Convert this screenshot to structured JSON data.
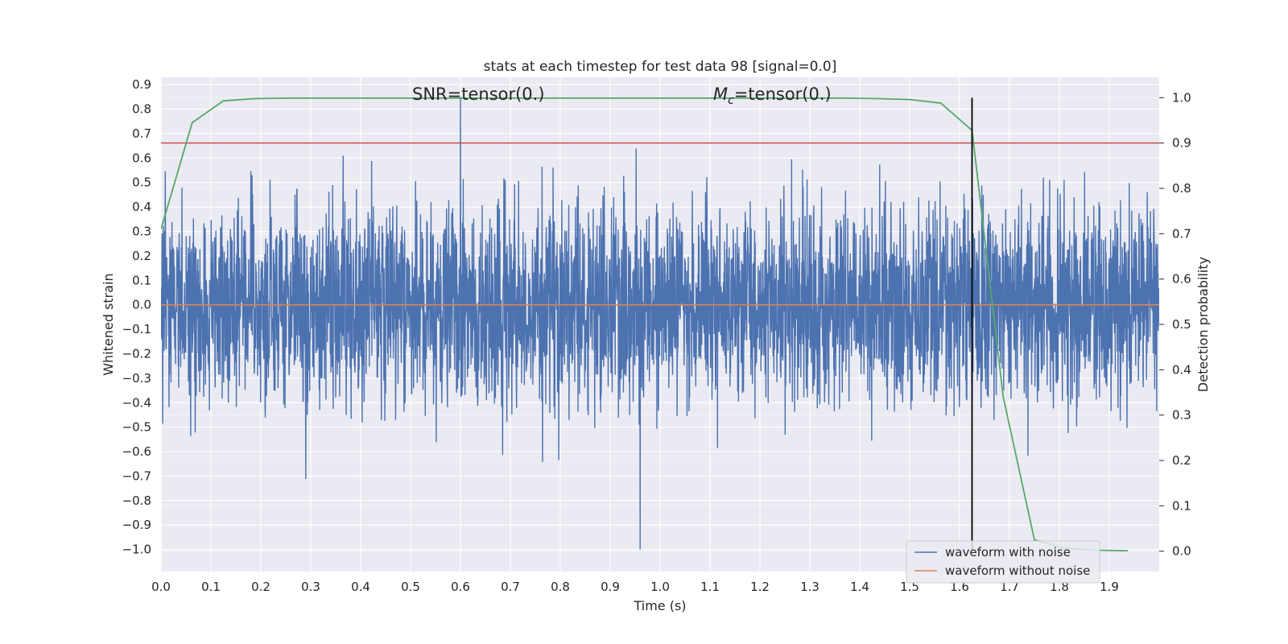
{
  "chart_data": {
    "type": "line",
    "title": "stats at each timestep for test data 98 [signal=0.0]",
    "xlabel": "Time (s)",
    "ylabel": "Whitened strain",
    "ylabel_right": "Detection probability",
    "xlim": [
      0.0,
      2.0
    ],
    "ylim": [
      -1.09,
      0.93
    ],
    "ylim_right": [
      -0.045,
      1.045
    ],
    "x_ticks": [
      "0.0",
      "0.1",
      "0.2",
      "0.3",
      "0.4",
      "0.5",
      "0.6",
      "0.7",
      "0.8",
      "0.9",
      "1.0",
      "1.1",
      "1.2",
      "1.3",
      "1.4",
      "1.5",
      "1.6",
      "1.7",
      "1.8",
      "1.9"
    ],
    "y_ticks": [
      "0.9",
      "0.8",
      "0.7",
      "0.6",
      "0.5",
      "0.4",
      "0.3",
      "0.2",
      "0.1",
      "0.0",
      "−0.1",
      "−0.2",
      "−0.3",
      "−0.4",
      "−0.5",
      "−0.6",
      "−0.7",
      "−0.8",
      "−0.9",
      "−1.0"
    ],
    "y_ticks_right": [
      "0.0",
      "0.1",
      "0.2",
      "0.3",
      "0.4",
      "0.5",
      "0.6",
      "0.7",
      "0.8",
      "0.9",
      "1.0"
    ],
    "grid": true,
    "legend_position": "lower-right",
    "annotations": {
      "snr": "SNR=tensor(0.)",
      "mc_symbol": "M",
      "mc_sub": "c",
      "mc_rest": "=tensor(0.)"
    },
    "threshold_right": 0.9,
    "detection_time": 1.625,
    "noise": {
      "n": 4000,
      "seed": 98,
      "sigma": 0.2,
      "max": 0.85,
      "min": -1.0,
      "peak_x": 0.6,
      "trough_x": 0.96
    },
    "series": [
      {
        "name": "waveform with noise",
        "color": "#4c72b0",
        "axis": "left"
      },
      {
        "name": "waveform without noise",
        "color": "#dd8452",
        "axis": "left",
        "x": [
          0.0,
          2.0
        ],
        "values": [
          0.0,
          0.0
        ]
      },
      {
        "color": "#55a868",
        "axis": "right",
        "x": [
          0.0,
          0.0625,
          0.125,
          0.1875,
          0.25,
          0.3125,
          0.375,
          0.4375,
          0.5,
          0.5625,
          0.625,
          0.6875,
          0.75,
          0.8125,
          0.875,
          0.9375,
          1.0,
          1.0625,
          1.125,
          1.1875,
          1.25,
          1.3125,
          1.375,
          1.4375,
          1.5,
          1.5625,
          1.625,
          1.6875,
          1.75,
          1.8125,
          1.875,
          1.9375
        ],
        "values": [
          0.71,
          0.945,
          0.993,
          0.998,
          0.999,
          0.999,
          0.999,
          0.999,
          0.999,
          0.999,
          0.999,
          0.999,
          0.999,
          0.999,
          0.999,
          0.999,
          0.999,
          0.999,
          0.999,
          0.999,
          0.999,
          0.999,
          0.999,
          0.998,
          0.996,
          0.988,
          0.928,
          0.34,
          0.025,
          0.006,
          0.002,
          0.001
        ]
      }
    ],
    "threshold_color": "#c44e52",
    "detection_line_color": "#000000"
  }
}
